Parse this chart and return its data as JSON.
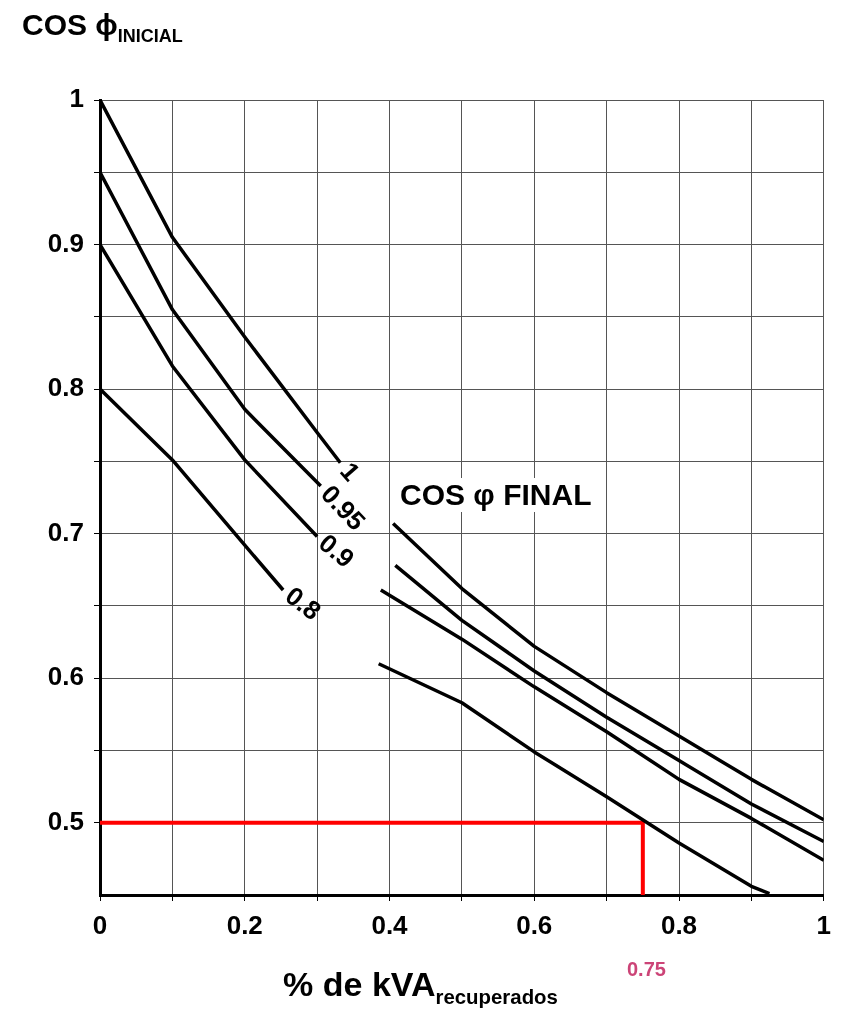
{
  "chart_data": {
    "type": "line",
    "ylabel": "COS ϕ$_{INICIAL}$",
    "xlabel": "% de kVA$_{recuperados}$",
    "legend_title": "COS φ FINAL",
    "xlim": [
      0,
      1
    ],
    "ylim": [
      0.45,
      1
    ],
    "xticks": [
      0,
      {
        "value": 0.1,
        "label": null
      },
      0.2,
      {
        "value": 0.3,
        "label": null
      },
      0.4,
      {
        "value": 0.5,
        "label": null
      },
      0.6,
      {
        "value": 0.7,
        "label": null
      },
      0.8,
      {
        "value": 0.9,
        "label": null
      },
      1
    ],
    "yticks": [
      0.5,
      {
        "value": 0.55,
        "label": null
      },
      0.6,
      {
        "value": 0.65,
        "label": null
      },
      0.7,
      {
        "value": 0.75,
        "label": null
      },
      0.8,
      {
        "value": 0.85,
        "label": null
      },
      0.9,
      {
        "value": 0.95,
        "label": null
      },
      1
    ],
    "grid": true,
    "marker": "none",
    "line_style": "solid",
    "series": [
      {
        "name": "1",
        "color": "#000000",
        "x": [
          0,
          0.1,
          0.2,
          0.3,
          0.332,
          0.37,
          0.405,
          0.5,
          0.6,
          0.7,
          0.8,
          0.9,
          1
        ],
        "values": [
          1,
          0.905,
          0.836,
          0.77,
          0.749,
          null,
          0.707,
          0.662,
          0.622,
          0.59,
          0.56,
          0.53,
          0.502
        ]
      },
      {
        "name": "0.95",
        "color": "#000000",
        "x": [
          0,
          0.1,
          0.2,
          0.305,
          0.36,
          0.408,
          0.5,
          0.6,
          0.7,
          0.8,
          0.9,
          1
        ],
        "values": [
          0.95,
          0.855,
          0.786,
          0.733,
          null,
          0.678,
          0.64,
          0.605,
          0.573,
          0.543,
          0.513,
          0.487
        ]
      },
      {
        "name": "0.9",
        "color": "#000000",
        "x": [
          0,
          0.1,
          0.2,
          0.3,
          0.34,
          0.388,
          0.5,
          0.6,
          0.7,
          0.8,
          0.9,
          1
        ],
        "values": [
          0.9,
          0.816,
          0.751,
          0.698,
          null,
          0.661,
          0.627,
          0.594,
          0.563,
          0.53,
          0.503,
          0.474
        ]
      },
      {
        "name": "0.8",
        "color": "#000000",
        "x": [
          0,
          0.1,
          0.2,
          0.253,
          0.32,
          0.385,
          0.5,
          0.6,
          0.7,
          0.8,
          0.9,
          0.925
        ],
        "values": [
          0.8,
          0.751,
          0.692,
          0.661,
          null,
          0.61,
          0.583,
          0.549,
          0.518,
          0.486,
          0.456,
          0.451
        ]
      },
      {
        "color": "#ff0000",
        "x": [
          0,
          0.75,
          0.75
        ],
        "values": [
          0.5,
          0.5,
          0.45
        ]
      }
    ],
    "annotations": [
      "0.75"
    ]
  }
}
